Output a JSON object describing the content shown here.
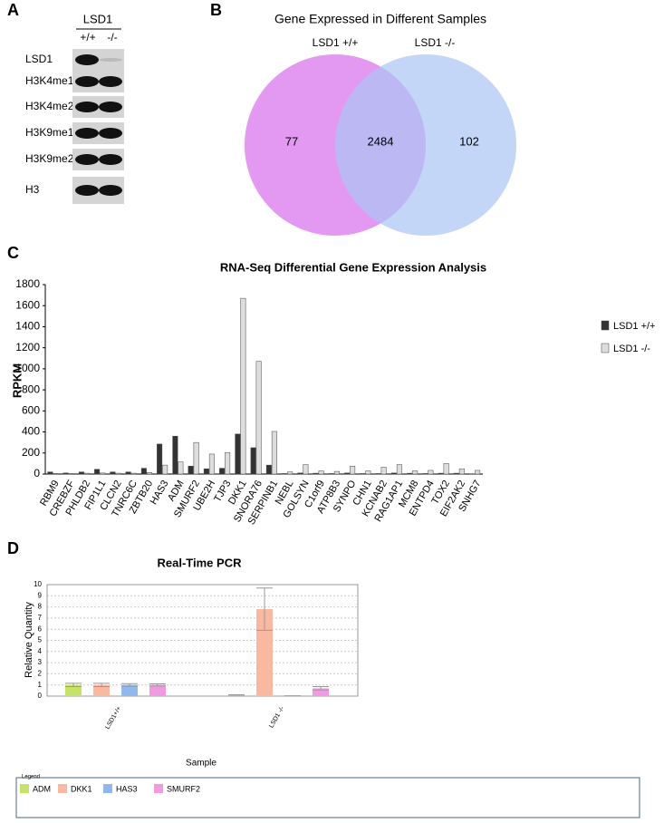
{
  "panel_labels": [
    "A",
    "B",
    "C",
    "D"
  ],
  "western_blot": {
    "group_label": "LSD1",
    "lanes": [
      "+/+",
      "-/-"
    ],
    "rows": [
      "LSD1",
      "H3K4me1",
      "H3K4me2",
      "H3K9me1",
      "H3K9me2",
      "H3"
    ]
  },
  "venn": {
    "title": "Gene Expressed in Different Samples",
    "sets": [
      {
        "name": "LSD1 +/+",
        "color": "#e08ef0"
      },
      {
        "name": "LSD1 -/-",
        "color": "#a9c4f3"
      }
    ],
    "only_first": "77",
    "both": "2484",
    "only_second": "102"
  },
  "chart_data": [
    {
      "type": "bar",
      "title": "RNA-Seq Differential Gene Expression Analysis",
      "y_label": "RPKM",
      "categories": [
        "RBM9",
        "CREBZF",
        "PHLDB2",
        "FIP1L1",
        "CLCN2",
        "TNRC6C",
        "ZBTB20",
        "HAS3",
        "ADM",
        "SMURF2",
        "UBE2H",
        "TJP3",
        "DKK1",
        "SNORA76",
        "SERPINB1",
        "NEBL",
        "GOLSYN",
        "C1orf9",
        "ATP8B3",
        "SYNPO",
        "CHN1",
        "KCNAB2",
        "RAG1AP1",
        "MCM8",
        "ENTPD4",
        "TOX2",
        "EIF2AK2",
        "SNHG7"
      ],
      "series": [
        {
          "name": "LSD1 +/+",
          "color": "#333333",
          "values": [
            20,
            10,
            20,
            45,
            20,
            20,
            55,
            285,
            360,
            75,
            50,
            55,
            380,
            250,
            85,
            5,
            10,
            8,
            5,
            10,
            5,
            5,
            10,
            8,
            5,
            8,
            8,
            3
          ]
        },
        {
          "name": "LSD1 -/-",
          "color": "#dddddd",
          "values": [
            5,
            5,
            8,
            10,
            8,
            8,
            15,
            85,
            115,
            300,
            190,
            205,
            1670,
            1070,
            405,
            20,
            90,
            30,
            25,
            75,
            30,
            65,
            90,
            30,
            35,
            100,
            50,
            35
          ]
        }
      ],
      "ylim": [
        0,
        1800
      ],
      "yticks": [
        0,
        200,
        400,
        600,
        800,
        1000,
        1200,
        1400,
        1600,
        1800
      ],
      "legend": "right"
    },
    {
      "type": "bar",
      "title": "Real-Time PCR",
      "x_label": "Sample",
      "y_label": "Relative Quantity",
      "legend_title": "Legend",
      "categories": [
        "LSD1+/+",
        "LSD1 -/-"
      ],
      "series": [
        {
          "name": "ADM",
          "color": "#c6e26b",
          "values": [
            1,
            0.1
          ],
          "errors": [
            0.15,
            0.02
          ]
        },
        {
          "name": "DKK1",
          "color": "#f8b9a0",
          "values": [
            1,
            7.8
          ],
          "errors": [
            0.15,
            1.9
          ]
        },
        {
          "name": "HAS3",
          "color": "#8fb8ec",
          "values": [
            1,
            0.02
          ],
          "errors": [
            0.12,
            0.01
          ]
        },
        {
          "name": "SMURF2",
          "color": "#f09be0",
          "values": [
            1,
            0.7
          ],
          "errors": [
            0.1,
            0.15
          ]
        }
      ],
      "ylim": [
        0,
        10
      ],
      "yticks": [
        0,
        1,
        2,
        3,
        4,
        5,
        6,
        7,
        8,
        9,
        10
      ],
      "grid": true,
      "legend": "bottom"
    }
  ]
}
